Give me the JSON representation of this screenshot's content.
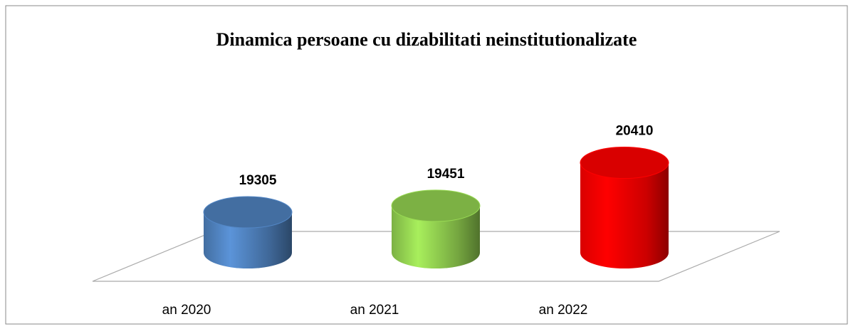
{
  "chart_data": {
    "type": "cylinder",
    "title": "Dinamica persoane cu dizabilitati neinstitutionalizate",
    "categories": [
      "an 2020",
      "an 2021",
      "an 2022"
    ],
    "values": [
      19305,
      19451,
      20410
    ],
    "colors": [
      "#4f81bd",
      "#92d050",
      "#ff0000"
    ],
    "ylim": [
      18400,
      20800
    ]
  }
}
